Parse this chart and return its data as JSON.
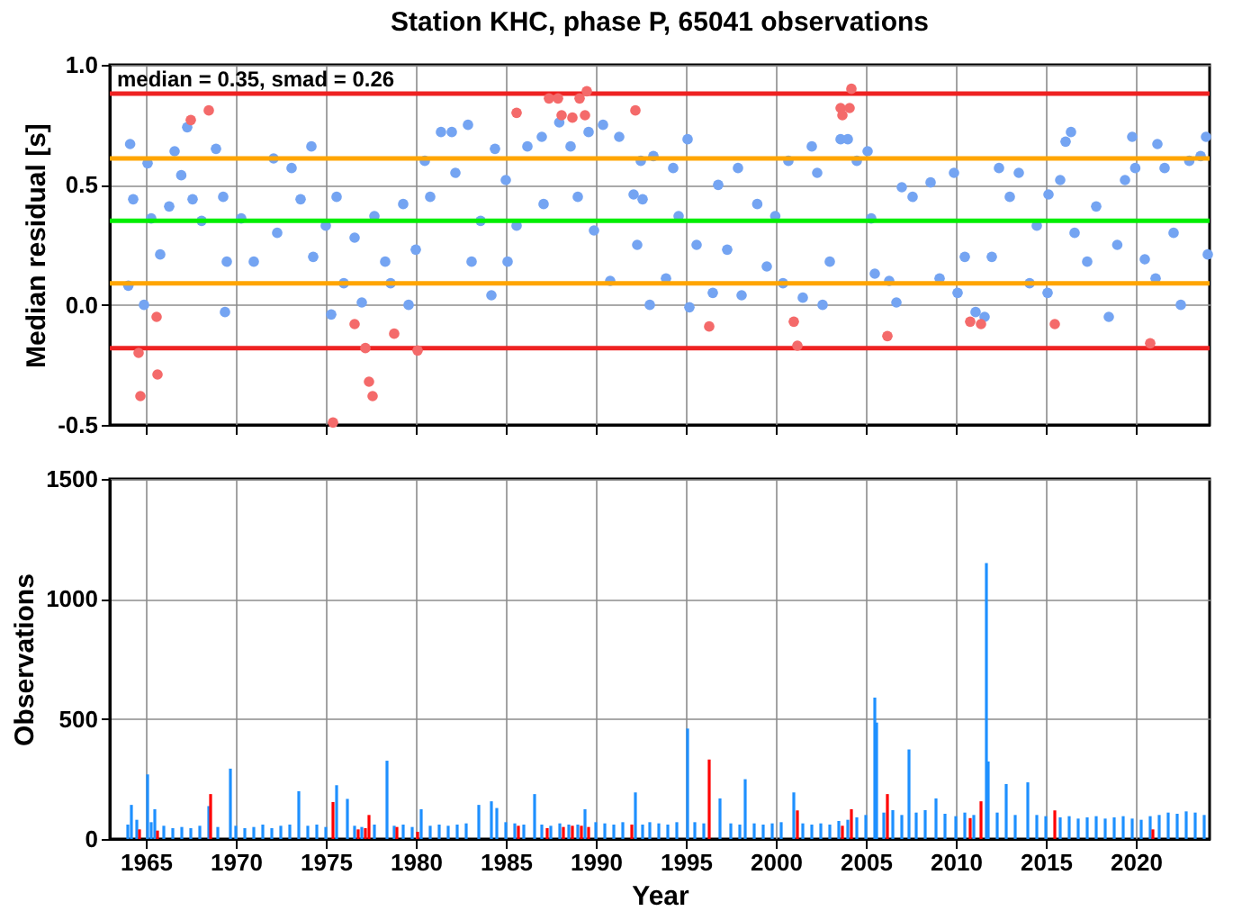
{
  "chart_data": [
    {
      "type": "scatter",
      "title": "Station KHC, phase P, 65041 observations",
      "ylabel": "Median residual [s]",
      "annotations": [
        "median = 0.35, smad = 0.26"
      ],
      "xlim": [
        1963,
        2024.1
      ],
      "xticks": [
        1965,
        1970,
        1975,
        1980,
        1985,
        1990,
        1995,
        2000,
        2005,
        2010,
        2015,
        2020
      ],
      "ylim": [
        -0.5,
        1.0
      ],
      "yticks": [
        {
          "value": -0.5,
          "label": "-0.5"
        },
        {
          "value": 0,
          "label": "0.0"
        },
        {
          "value": 0.5,
          "label": "0.5"
        },
        {
          "value": 1.0,
          "label": "1.0"
        }
      ],
      "grid": true,
      "tick_labels": "y",
      "marker": "circle",
      "ref_lines": [
        {
          "axis": "y",
          "value": 0.88,
          "label": null,
          "color": "#ee2222"
        },
        {
          "axis": "y",
          "value": 0.61,
          "label": null,
          "color": "#ffa500"
        },
        {
          "axis": "y",
          "value": 0.35,
          "label": null,
          "color": "#00ee00"
        },
        {
          "axis": "y",
          "value": 0.09,
          "label": null,
          "color": "#ffa500"
        },
        {
          "axis": "y",
          "value": -0.18,
          "label": null,
          "color": "#ee2222"
        }
      ],
      "series": [
        {
          "color": "#74a4f2",
          "x": [
            1964.03,
            1964.13,
            1964.3,
            1964.9,
            1965.1,
            1965.3,
            1965.8,
            1966.3,
            1966.6,
            1966.97,
            1967.3,
            1967.6,
            1968.1,
            1968.9,
            1969.3,
            1969.4,
            1969.5,
            1970.3,
            1971,
            1972.1,
            1972.3,
            1973.1,
            1973.6,
            1974.2,
            1974.3,
            1975,
            1975.3,
            1975.6,
            1976,
            1976.6,
            1977,
            1977.7,
            1978.3,
            1978.6,
            1979.3,
            1979.6,
            1980,
            1980.5,
            1980.8,
            1981.4,
            1982,
            1982.2,
            1982.9,
            1983.1,
            1983.6,
            1984.2,
            1984.4,
            1985,
            1985.1,
            1985.6,
            1986.2,
            1987,
            1987.1,
            1987.97,
            1988.6,
            1989,
            1989.6,
            1989.9,
            1990.4,
            1990.8,
            1991.3,
            1992.1,
            1992.3,
            1992.5,
            1992.6,
            1993,
            1993.2,
            1993.9,
            1994.3,
            1994.6,
            1995.1,
            1995.2,
            1995.6,
            1996.5,
            1996.8,
            1997.3,
            1997.9,
            1998.1,
            1998.97,
            1999.5,
            1999.97,
            2000.4,
            2000.7,
            2001.5,
            2002,
            2002.3,
            2002.6,
            2003,
            2003.6,
            2004,
            2004.5,
            2005.1,
            2005.3,
            2005.5,
            2006.3,
            2006.7,
            2007,
            2007.6,
            2008.6,
            2009.1,
            2009.9,
            2010.1,
            2010.5,
            2011.1,
            2011.6,
            2012,
            2012.4,
            2013,
            2013.5,
            2014.1,
            2014.5,
            2015.1,
            2015.15,
            2015.8,
            2016.1,
            2016.4,
            2016.6,
            2017.3,
            2017.8,
            2018.5,
            2018.97,
            2019.4,
            2019.8,
            2019.97,
            2020.5,
            2021.1,
            2021.2,
            2021.6,
            2022.1,
            2022.5,
            2022.97,
            2023.6,
            2023.9,
            2024.0
          ],
          "values": [
            0.08,
            0.67,
            0.44,
            0.0,
            0.59,
            0.36,
            0.21,
            0.41,
            0.64,
            0.54,
            0.74,
            0.44,
            0.35,
            0.65,
            0.45,
            -0.03,
            0.18,
            0.36,
            0.18,
            0.61,
            0.3,
            0.57,
            0.44,
            0.66,
            0.2,
            0.33,
            -0.04,
            0.45,
            0.09,
            0.28,
            0.01,
            0.37,
            0.18,
            0.09,
            0.42,
            0.0,
            0.23,
            0.6,
            0.45,
            0.72,
            0.72,
            0.55,
            0.75,
            0.18,
            0.35,
            0.04,
            0.65,
            0.52,
            0.18,
            0.33,
            0.66,
            0.7,
            0.42,
            0.76,
            0.66,
            0.45,
            0.72,
            0.31,
            0.75,
            0.1,
            0.7,
            0.46,
            0.25,
            0.6,
            0.44,
            0.0,
            0.62,
            0.11,
            0.57,
            0.37,
            0.69,
            -0.01,
            0.25,
            0.05,
            0.5,
            0.23,
            0.57,
            0.04,
            0.42,
            0.16,
            0.37,
            0.09,
            0.6,
            0.03,
            0.66,
            0.55,
            0.0,
            0.18,
            0.69,
            0.69,
            0.6,
            0.64,
            0.36,
            0.13,
            0.1,
            0.01,
            0.49,
            0.45,
            0.51,
            0.11,
            0.55,
            0.05,
            0.2,
            -0.03,
            -0.05,
            0.2,
            0.57,
            0.45,
            0.55,
            0.09,
            0.33,
            0.05,
            0.46,
            0.52,
            0.68,
            0.72,
            0.3,
            0.18,
            0.41,
            -0.05,
            0.25,
            0.52,
            0.7,
            0.57,
            0.19,
            0.11,
            0.67,
            0.57,
            0.3,
            0.0,
            0.6,
            0.62,
            0.7,
            0.21
          ]
        },
        {
          "color": "#f46a6a",
          "x": [
            1964.6,
            1964.7,
            1965.6,
            1965.65,
            1967.5,
            1968.5,
            1975.4,
            1976.6,
            1977.2,
            1977.4,
            1977.6,
            1978.8,
            1980.1,
            1985.6,
            1987.4,
            1987.9,
            1988.1,
            1988.7,
            1989.1,
            1989.4,
            1989.5,
            1992.2,
            1996.3,
            2001.0,
            2001.2,
            2003.6,
            2003.7,
            2004.1,
            2004.2,
            2006.2,
            2010.8,
            2011.4,
            2015.5,
            2020.8
          ],
          "values": [
            -0.2,
            -0.38,
            -0.05,
            -0.29,
            0.77,
            0.81,
            -0.49,
            -0.08,
            -0.18,
            -0.32,
            -0.38,
            -0.12,
            -0.19,
            0.8,
            0.86,
            0.86,
            0.79,
            0.78,
            0.86,
            0.79,
            0.89,
            0.81,
            -0.09,
            -0.07,
            -0.17,
            0.82,
            0.79,
            0.82,
            0.9,
            -0.13,
            -0.07,
            -0.08,
            -0.08,
            -0.16
          ]
        }
      ]
    },
    {
      "type": "bar",
      "xlabel": "Year",
      "ylabel": "Observations",
      "xlim": [
        1963,
        2024.1
      ],
      "xticks": [
        1965,
        1970,
        1975,
        1980,
        1985,
        1990,
        1995,
        2000,
        2005,
        2010,
        2015,
        2020
      ],
      "ylim": [
        0,
        1500
      ],
      "yticks": [
        0,
        500,
        1000,
        1500
      ],
      "grid": true,
      "series": [
        {
          "color": "#1e90ff",
          "x": [
            1964.0,
            1964.2,
            1964.5,
            1965.1,
            1965.3,
            1965.5,
            1966,
            1966.5,
            1967,
            1967.5,
            1968,
            1968.5,
            1969,
            1969.7,
            1970,
            1970.5,
            1971,
            1971.5,
            1972,
            1972.5,
            1973,
            1973.5,
            1974,
            1974.5,
            1975,
            1975.6,
            1976.2,
            1976.6,
            1977,
            1977.7,
            1978.4,
            1978.8,
            1979.3,
            1979.8,
            1980.3,
            1980.8,
            1981.3,
            1981.8,
            1982.3,
            1982.8,
            1983.5,
            1984.2,
            1984.5,
            1985,
            1985.5,
            1986,
            1986.6,
            1987,
            1987.5,
            1988,
            1988.5,
            1989,
            1989.4,
            1990,
            1990.5,
            1991,
            1991.5,
            1992.2,
            1992.6,
            1993,
            1993.5,
            1994,
            1994.5,
            1995.1,
            1995.5,
            1996,
            1996.9,
            1997.5,
            1998,
            1998.3,
            1998.8,
            1999.3,
            1999.8,
            2000.3,
            2001,
            2001.5,
            2002,
            2002.5,
            2003,
            2003.5,
            2004,
            2004.5,
            2005,
            2005.5,
            2005.6,
            2006,
            2006.5,
            2007,
            2007.4,
            2007.8,
            2008.3,
            2008.9,
            2009.4,
            2010,
            2010.5,
            2011,
            2011.7,
            2011.8,
            2012.3,
            2012.8,
            2013.3,
            2014,
            2014.5,
            2015,
            2015.8,
            2016.3,
            2016.8,
            2017.3,
            2017.8,
            2018.3,
            2018.8,
            2019.3,
            2019.8,
            2020.3,
            2020.8,
            2021.3,
            2021.8,
            2022.3,
            2022.8,
            2023.3,
            2023.8
          ],
          "values": [
            60,
            142,
            80,
            269,
            70,
            124,
            55,
            45,
            50,
            45,
            55,
            137,
            50,
            293,
            55,
            45,
            50,
            60,
            45,
            55,
            60,
            199,
            55,
            60,
            50,
            224,
            167,
            55,
            50,
            60,
            326,
            55,
            60,
            50,
            124,
            55,
            60,
            55,
            60,
            65,
            142,
            157,
            129,
            70,
            65,
            60,
            187,
            60,
            55,
            65,
            60,
            60,
            124,
            70,
            65,
            60,
            70,
            194,
            60,
            70,
            65,
            60,
            70,
            460,
            70,
            65,
            169,
            65,
            60,
            249,
            65,
            60,
            65,
            70,
            194,
            65,
            60,
            65,
            60,
            75,
            80,
            90,
            100,
            589,
            485,
            110,
            120,
            100,
            373,
            110,
            120,
            169,
            105,
            95,
            110,
            100,
            1149,
            323,
            110,
            229,
            100,
            236,
            100,
            95,
            90,
            95,
            85,
            90,
            95,
            85,
            90,
            95,
            85,
            80,
            95,
            100,
            110,
            105,
            115,
            110,
            100
          ]
        },
        {
          "color": "#ff0000",
          "x": [
            1964.65,
            1965.65,
            1968.6,
            1975.4,
            1976.8,
            1977.2,
            1977.4,
            1978.95,
            1980.1,
            1985.7,
            1987.3,
            1988.2,
            1988.7,
            1989.2,
            1989.6,
            1992.0,
            1996.3,
            2001.2,
            2003.7,
            2004.2,
            2006.2,
            2010.8,
            2011.4,
            2015.5,
            2020.95
          ],
          "values": [
            40,
            35,
            187,
            154,
            40,
            45,
            100,
            50,
            30,
            55,
            45,
            50,
            55,
            55,
            50,
            60,
            331,
            119,
            55,
            124,
            187,
            87,
            157,
            119,
            40
          ]
        }
      ]
    }
  ]
}
